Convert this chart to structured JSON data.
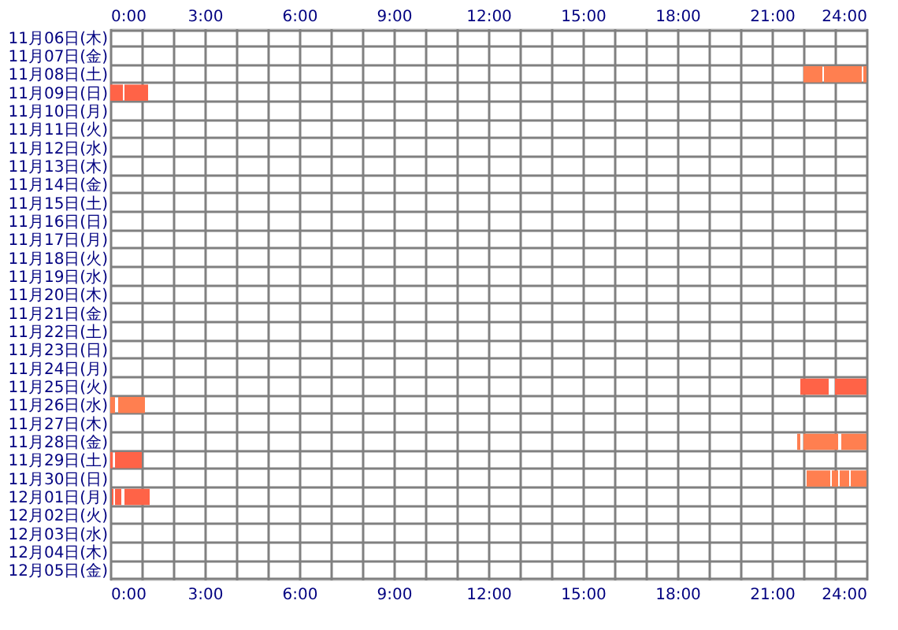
{
  "chart_data": [
    {
      "type": "bar",
      "orientation": "horizontal",
      "categories": [
        "11月06日(木)",
        "11月07日(金)",
        "11月08日(土)",
        "11月09日(日)",
        "11月10日(月)",
        "11月11日(火)",
        "11月12日(水)",
        "11月13日(木)",
        "11月14日(金)",
        "11月15日(土)",
        "11月16日(日)",
        "11月17日(月)",
        "11月18日(火)",
        "11月19日(水)",
        "11月20日(木)",
        "11月21日(金)",
        "11月22日(土)",
        "11月23日(日)",
        "11月24日(月)",
        "11月25日(火)",
        "11月26日(水)",
        "11月27日(木)",
        "11月28日(金)",
        "11月29日(土)",
        "11月30日(日)",
        "12月01日(月)",
        "12月02日(火)",
        "12月03日(水)",
        "12月04日(木)",
        "12月05日(金)"
      ],
      "series": [
        {
          "base": [
            null,
            null,
            22.0,
            0,
            null,
            null,
            null,
            null,
            null,
            null,
            null,
            null,
            null,
            null,
            null,
            null,
            null,
            null,
            null,
            21.9,
            0,
            null,
            21.8,
            0,
            22.1,
            0.05,
            null,
            null,
            null,
            null
          ],
          "values": [
            null,
            null,
            0.6,
            0.4,
            null,
            null,
            null,
            null,
            null,
            null,
            null,
            null,
            null,
            null,
            null,
            null,
            null,
            null,
            null,
            0.9,
            0.15,
            null,
            0.1,
            0.08,
            0.75,
            0.05,
            null,
            null,
            null,
            null
          ],
          "colors": [
            null,
            null,
            "#ff7f50",
            "#ff6347",
            null,
            null,
            null,
            null,
            null,
            null,
            null,
            null,
            null,
            null,
            null,
            null,
            null,
            null,
            null,
            "#ff6347",
            "#ff7f50",
            null,
            "#ff7f50",
            "#ff6347",
            "#ff7f50",
            "#ff6347",
            null,
            null,
            null,
            null
          ]
        },
        {
          "base": [
            null,
            null,
            22.65,
            0.45,
            null,
            null,
            null,
            null,
            null,
            null,
            null,
            null,
            null,
            null,
            null,
            null,
            null,
            null,
            null,
            23.0,
            0.25,
            null,
            22.0,
            0.15,
            22.9,
            0.15,
            null,
            null,
            null,
            null
          ],
          "values": [
            null,
            null,
            1.2,
            0.75,
            null,
            null,
            null,
            null,
            null,
            null,
            null,
            null,
            null,
            null,
            null,
            null,
            null,
            null,
            null,
            1.0,
            0.85,
            null,
            1.1,
            0.85,
            0.2,
            0.2,
            null,
            null,
            null,
            null
          ],
          "colors": [
            null,
            null,
            "#ff7f50",
            "#ff6347",
            null,
            null,
            null,
            null,
            null,
            null,
            null,
            null,
            null,
            null,
            null,
            null,
            null,
            null,
            null,
            "#ff6347",
            "#ff7f50",
            null,
            "#ff7f50",
            "#ff6347",
            "#ff7f50",
            "#ff6347",
            null,
            null,
            null,
            null
          ]
        },
        {
          "base": [
            null,
            null,
            23.9,
            null,
            null,
            null,
            null,
            null,
            null,
            null,
            null,
            null,
            null,
            null,
            null,
            null,
            null,
            null,
            null,
            null,
            null,
            null,
            23.2,
            null,
            23.15,
            0.45,
            null,
            null,
            null,
            null
          ],
          "values": [
            null,
            null,
            0.1,
            null,
            null,
            null,
            null,
            null,
            null,
            null,
            null,
            null,
            null,
            null,
            null,
            null,
            null,
            null,
            null,
            null,
            null,
            null,
            0.8,
            null,
            0.3,
            0.8,
            null,
            null,
            null,
            null
          ],
          "colors": [
            null,
            null,
            "#ff7f50",
            null,
            null,
            null,
            null,
            null,
            null,
            null,
            null,
            null,
            null,
            null,
            null,
            null,
            null,
            null,
            null,
            null,
            null,
            null,
            "#ff7f50",
            null,
            "#ff7f50",
            "#ff6347",
            null,
            null,
            null,
            null
          ]
        },
        {
          "base": [
            null,
            null,
            null,
            null,
            null,
            null,
            null,
            null,
            null,
            null,
            null,
            null,
            null,
            null,
            null,
            null,
            null,
            null,
            null,
            null,
            null,
            null,
            null,
            null,
            23.5,
            null,
            null,
            null,
            null,
            null
          ],
          "values": [
            null,
            null,
            null,
            null,
            null,
            null,
            null,
            null,
            null,
            null,
            null,
            null,
            null,
            null,
            null,
            null,
            null,
            null,
            null,
            null,
            null,
            null,
            null,
            null,
            0.5,
            null,
            null,
            null,
            null,
            null
          ],
          "colors": [
            null,
            null,
            null,
            null,
            null,
            null,
            null,
            null,
            null,
            null,
            null,
            null,
            null,
            null,
            null,
            null,
            null,
            null,
            null,
            null,
            null,
            null,
            null,
            null,
            "#ff7f50",
            null,
            null,
            null,
            null,
            null
          ]
        }
      ],
      "xlim": [
        0,
        24
      ],
      "xticks": [
        {
          "value": 0,
          "label": "0:00"
        },
        {
          "value": 1,
          "label": null
        },
        {
          "value": 2,
          "label": null
        },
        {
          "value": 3,
          "label": "3:00"
        },
        {
          "value": 4,
          "label": null
        },
        {
          "value": 5,
          "label": null
        },
        {
          "value": 6,
          "label": "6:00"
        },
        {
          "value": 7,
          "label": null
        },
        {
          "value": 8,
          "label": null
        },
        {
          "value": 9,
          "label": "9:00"
        },
        {
          "value": 10,
          "label": null
        },
        {
          "value": 11,
          "label": null
        },
        {
          "value": 12,
          "label": "12:00"
        },
        {
          "value": 13,
          "label": null
        },
        {
          "value": 14,
          "label": null
        },
        {
          "value": 15,
          "label": "15:00"
        },
        {
          "value": 16,
          "label": null
        },
        {
          "value": 17,
          "label": null
        },
        {
          "value": 18,
          "label": "18:00"
        },
        {
          "value": 19,
          "label": null
        },
        {
          "value": 20,
          "label": null
        },
        {
          "value": 21,
          "label": "21:00"
        },
        {
          "value": 22,
          "label": null
        },
        {
          "value": 23,
          "label": null
        },
        {
          "value": 24,
          "label": "24:00"
        }
      ],
      "x2lim": [
        0,
        24
      ],
      "x2ticks": [
        {
          "value": 0,
          "label": "0:00"
        },
        {
          "value": 3,
          "label": "3:00"
        },
        {
          "value": 6,
          "label": "6:00"
        },
        {
          "value": 9,
          "label": "9:00"
        },
        {
          "value": 12,
          "label": "12:00"
        },
        {
          "value": 15,
          "label": "15:00"
        },
        {
          "value": 18,
          "label": "18:00"
        },
        {
          "value": 21,
          "label": "21:00"
        },
        {
          "value": 24,
          "label": "24:00"
        }
      ],
      "grid": true
    }
  ]
}
